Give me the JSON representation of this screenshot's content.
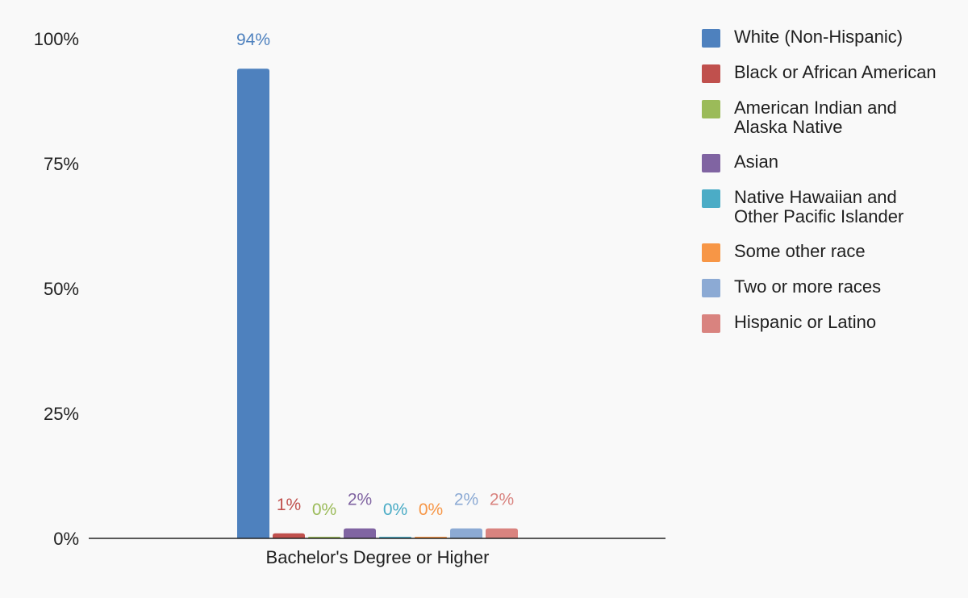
{
  "chart_data": {
    "type": "bar",
    "categories": [
      "Bachelor's Degree or Higher"
    ],
    "ylim": [
      0,
      100
    ],
    "y_ticks": [
      "0%",
      "25%",
      "50%",
      "75%",
      "100%"
    ],
    "y_tick_values": [
      0,
      25,
      50,
      75,
      100
    ],
    "grid": false,
    "legend_position": "right",
    "series": [
      {
        "name": "White (Non-Hispanic)",
        "values": [
          94
        ],
        "label": "94%",
        "color": "#4e81be"
      },
      {
        "name": "Black or African American",
        "values": [
          1
        ],
        "label": "1%",
        "color": "#c0504d"
      },
      {
        "name": "American Indian and Alaska Native",
        "values": [
          0
        ],
        "label": "0%",
        "color": "#9bbb59"
      },
      {
        "name": "Asian",
        "values": [
          2
        ],
        "label": "2%",
        "color": "#8064a2"
      },
      {
        "name": "Native Hawaiian and Other Pacific Islander",
        "values": [
          0
        ],
        "label": "0%",
        "color": "#4bacc6"
      },
      {
        "name": "Some other race",
        "values": [
          0
        ],
        "label": "0%",
        "color": "#f79646"
      },
      {
        "name": "Two or more races",
        "values": [
          2
        ],
        "label": "2%",
        "color": "#8caad4"
      },
      {
        "name": "Hispanic or Latino",
        "values": [
          2
        ],
        "label": "2%",
        "color": "#d9837f"
      }
    ]
  }
}
